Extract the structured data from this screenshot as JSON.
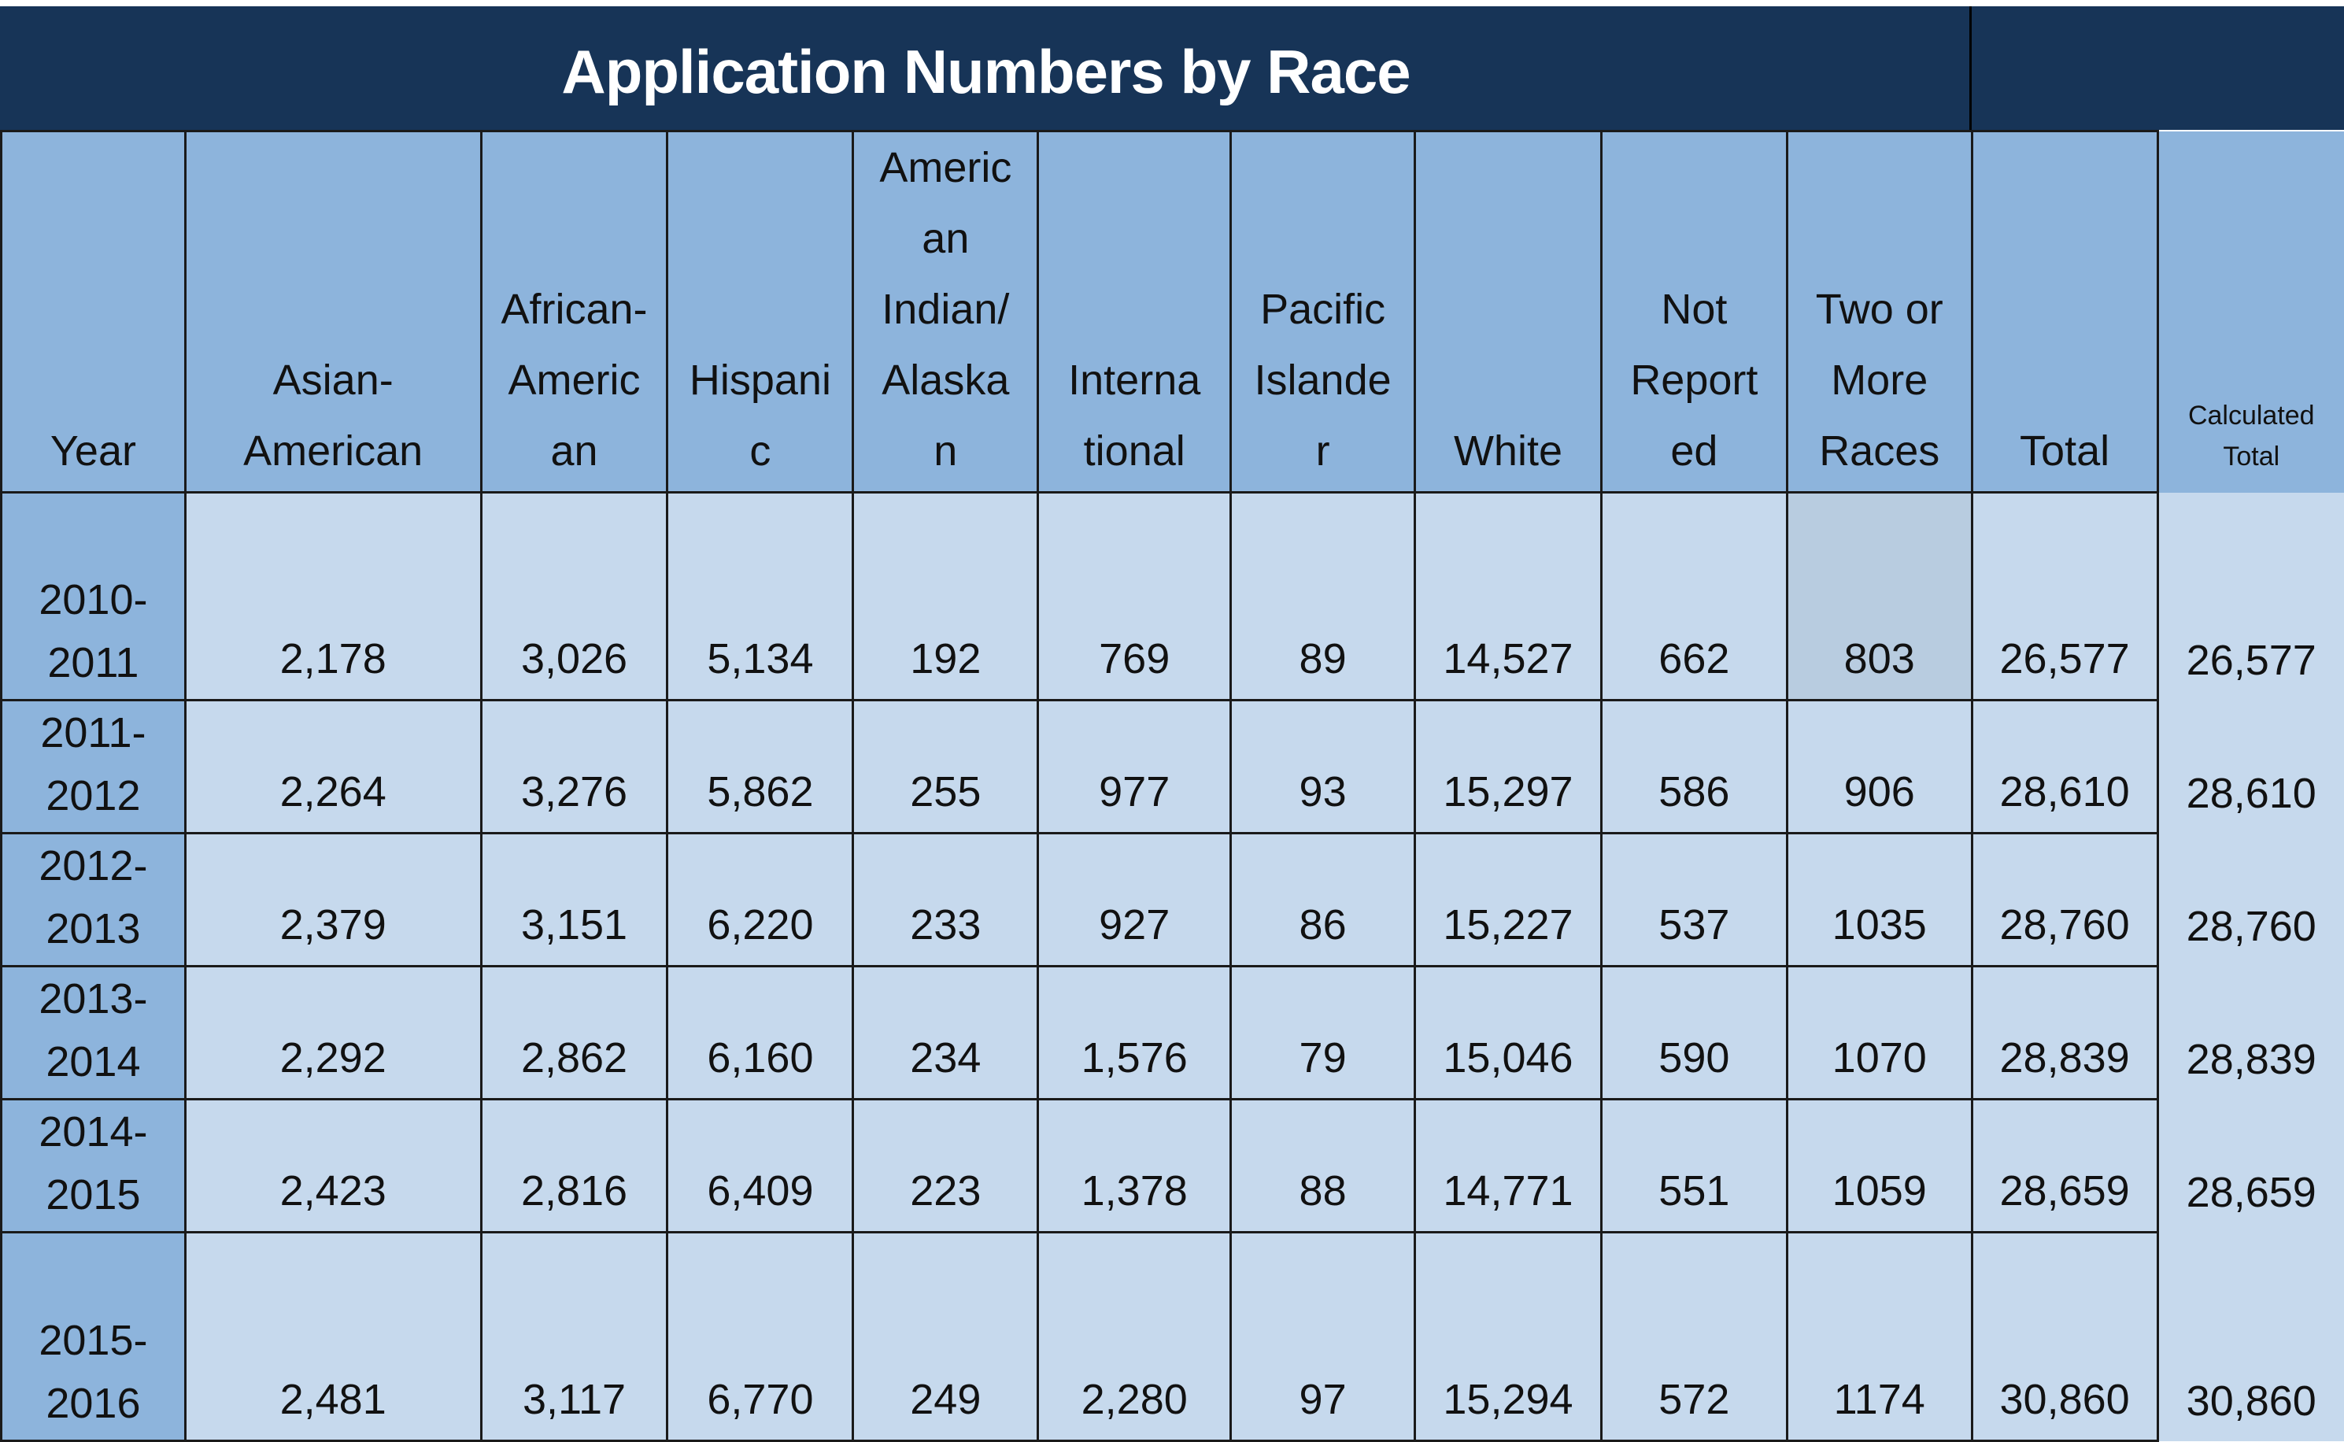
{
  "title": "Application Numbers by Race",
  "columns": [
    "Year",
    "Asian-American",
    "African-American",
    "Hispanic",
    "American Indian/Alaskan",
    "International",
    "Pacific Islander",
    "White",
    "Not Reported",
    "Two or More Races",
    "Total",
    "Calculated Total"
  ],
  "rows": [
    {
      "year": "2010-2011",
      "values": [
        "2,178",
        "3,026",
        "5,134",
        "192",
        "769",
        "89",
        "14,527",
        "662",
        "803",
        "26,577",
        "26,577"
      ]
    },
    {
      "year": "2011-2012",
      "values": [
        "2,264",
        "3,276",
        "5,862",
        "255",
        "977",
        "93",
        "15,297",
        "586",
        "906",
        "28,610",
        "28,610"
      ]
    },
    {
      "year": "2012-2013",
      "values": [
        "2,379",
        "3,151",
        "6,220",
        "233",
        "927",
        "86",
        "15,227",
        "537",
        "1035",
        "28,760",
        "28,760"
      ]
    },
    {
      "year": "2013-2014",
      "values": [
        "2,292",
        "2,862",
        "6,160",
        "234",
        "1,576",
        "79",
        "15,046",
        "590",
        "1070",
        "28,839",
        "28,839"
      ]
    },
    {
      "year": "2014-2015",
      "values": [
        "2,423",
        "2,816",
        "6,409",
        "223",
        "1,378",
        "88",
        "14,771",
        "551",
        "1059",
        "28,659",
        "28,659"
      ]
    },
    {
      "year": "2015-2016",
      "values": [
        "2,481",
        "3,117",
        "6,770",
        "249",
        "2,280",
        "97",
        "15,294",
        "572",
        "1174",
        "30,860",
        "30,860"
      ]
    }
  ],
  "colors": {
    "title_bg": "#173457",
    "header_bg": "#8db4dc",
    "cell_bg": "#c6d9ed",
    "selected_cell_bg": "#b8cce0"
  }
}
